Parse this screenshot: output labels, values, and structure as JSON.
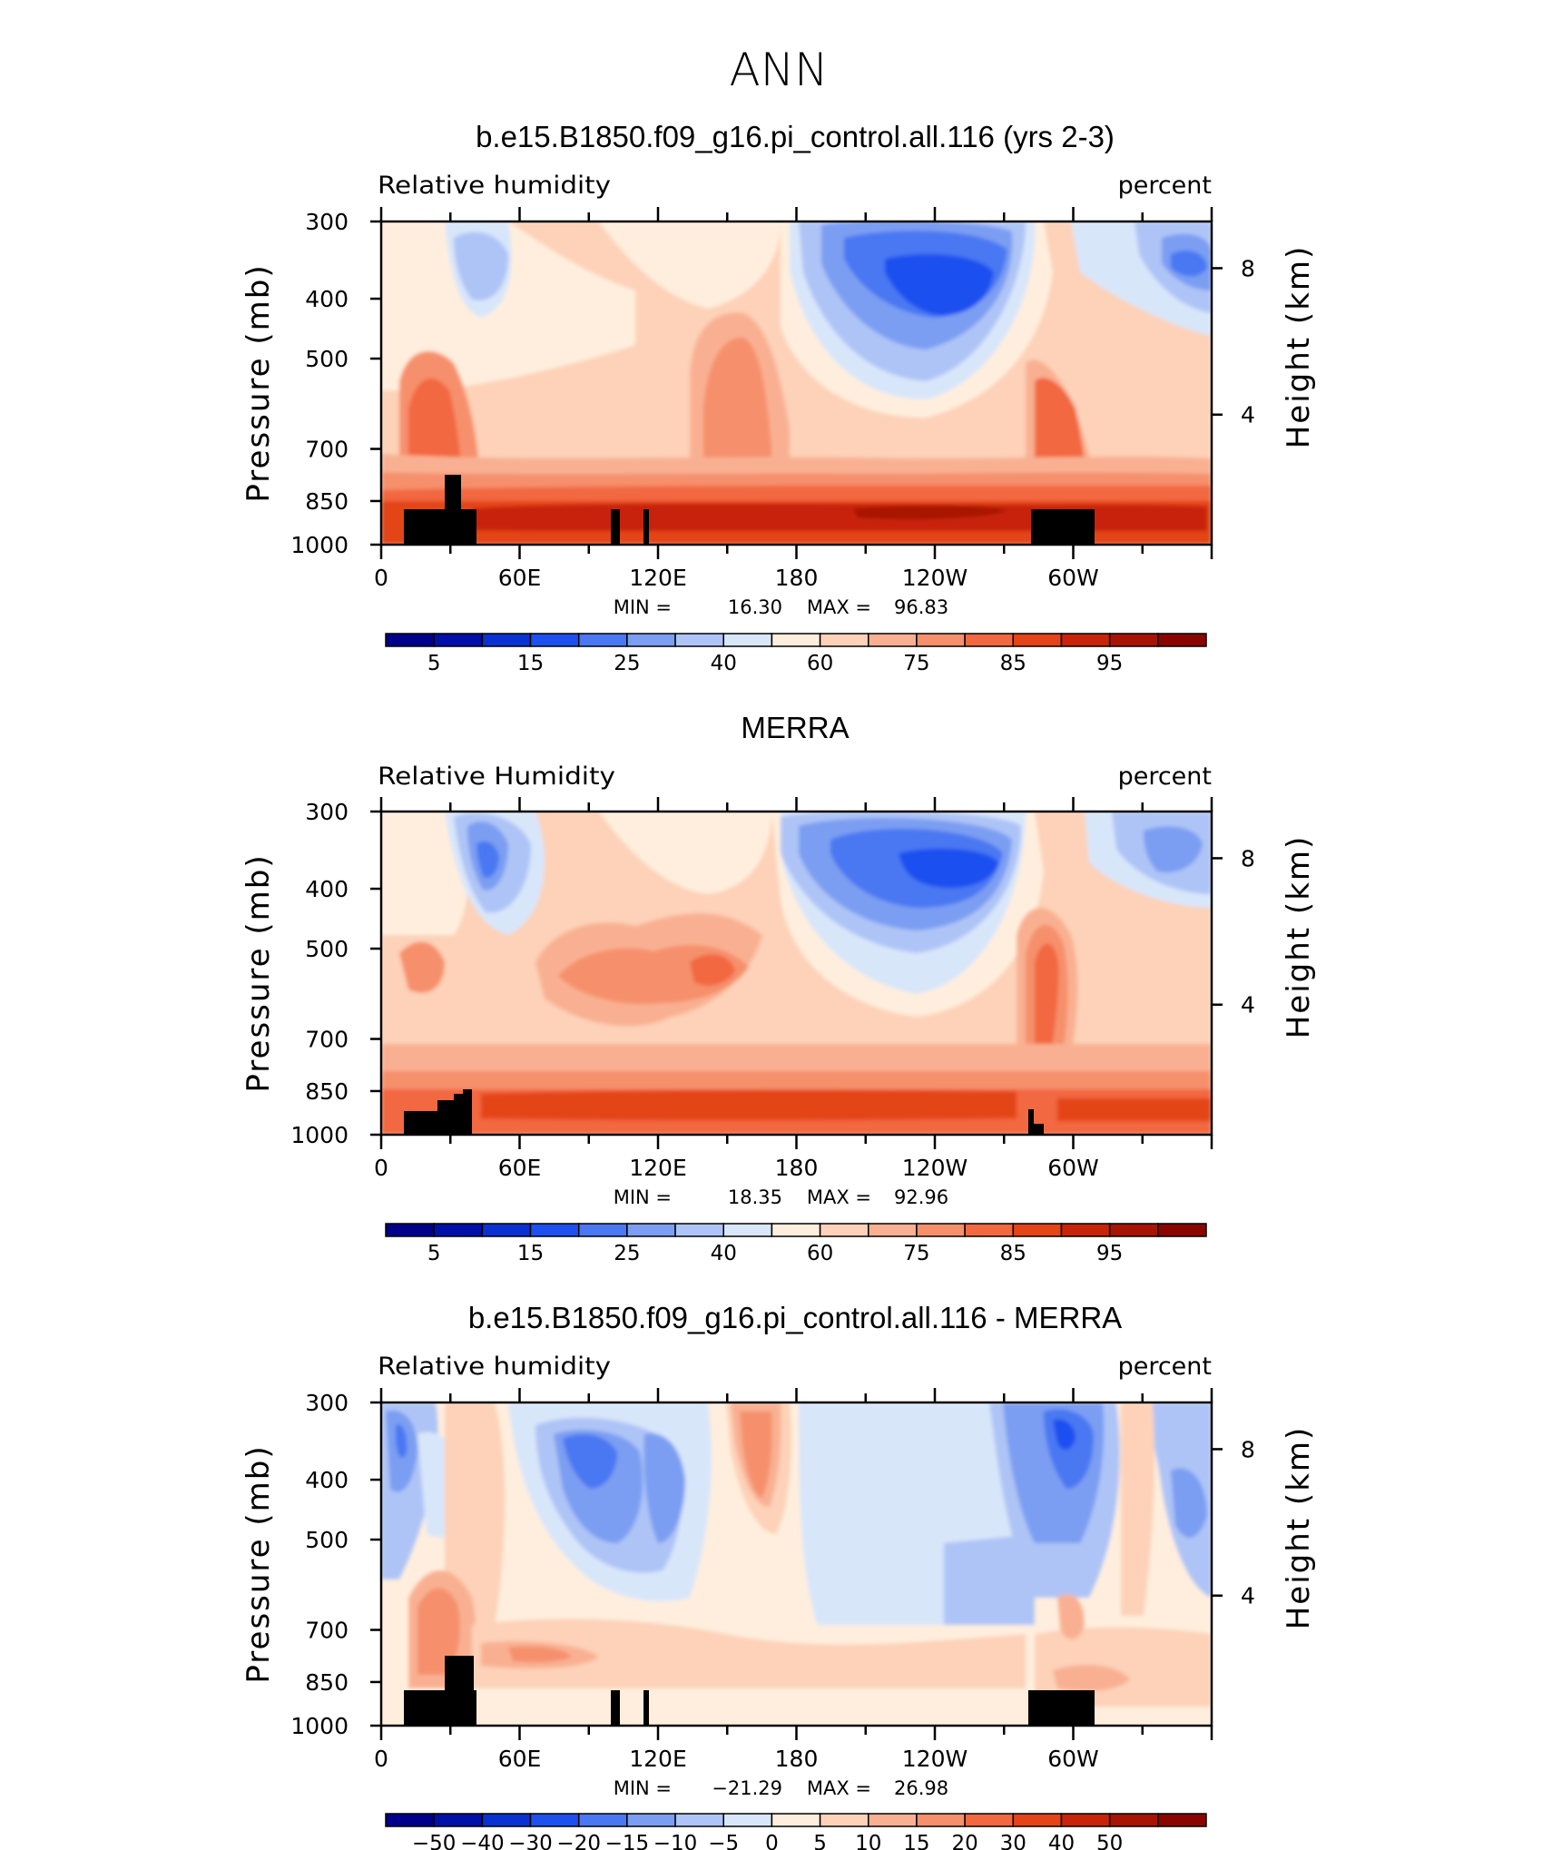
{
  "page_title": "ANN",
  "colors": {
    "relative_humidity_scale": [
      "#00008c",
      "#0010a8",
      "#0a32d2",
      "#1e50f0",
      "#4a78f2",
      "#7c9ef2",
      "#aec4f6",
      "#d8e6fa",
      "#ffeedd",
      "#fdd2b8",
      "#f9b092",
      "#f6906c",
      "#f26840",
      "#e44418",
      "#c8240a",
      "#a81404",
      "#8a0400"
    ],
    "difference_scale": [
      "#00008c",
      "#0010a8",
      "#0a32d2",
      "#1e50f0",
      "#4a78f2",
      "#7c9ef2",
      "#aec4f6",
      "#d8e6fa",
      "#ffeedd",
      "#fdd2b8",
      "#f9b092",
      "#f6906c",
      "#f26840",
      "#e44418",
      "#c8240a",
      "#a81404",
      "#8a0400"
    ],
    "topography": "#000000"
  },
  "chart_data": [
    {
      "type": "heatmap",
      "title": "b.e15.B1850.f09_g16.pi_control.all.116 (yrs 2-3)",
      "left_label": "Relative humidity",
      "right_label": "percent",
      "ylabel": "Pressure (mb)",
      "ylabel_right": "Height (km)",
      "y_ticks": [
        "300",
        "400",
        "500",
        "700",
        "850",
        "1000"
      ],
      "y_right_ticks": [
        "8",
        "4"
      ],
      "x_ticks": [
        "0",
        "60E",
        "120E",
        "180",
        "120W",
        "60W"
      ],
      "xlim": [
        0,
        360
      ],
      "ylim": [
        1000,
        300
      ],
      "min_label": "MIN =",
      "min": "16.30",
      "max_label": "MAX =",
      "max": "96.83",
      "colorbar_labels": [
        "5",
        "15",
        "25",
        "40",
        "60",
        "75",
        "85",
        "95"
      ]
    },
    {
      "type": "heatmap",
      "title": "MERRA",
      "left_label": "Relative Humidity",
      "right_label": "percent",
      "ylabel": "Pressure (mb)",
      "ylabel_right": "Height (km)",
      "y_ticks": [
        "300",
        "400",
        "500",
        "700",
        "850",
        "1000"
      ],
      "y_right_ticks": [
        "8",
        "4"
      ],
      "x_ticks": [
        "0",
        "60E",
        "120E",
        "180",
        "120W",
        "60W"
      ],
      "xlim": [
        0,
        360
      ],
      "ylim": [
        1000,
        300
      ],
      "min_label": "MIN =",
      "min": "18.35",
      "max_label": "MAX =",
      "max": "92.96",
      "colorbar_labels": [
        "5",
        "15",
        "25",
        "40",
        "60",
        "75",
        "85",
        "95"
      ]
    },
    {
      "type": "heatmap",
      "title": "b.e15.B1850.f09_g16.pi_control.all.116 - MERRA",
      "left_label": "Relative humidity",
      "right_label": "percent",
      "ylabel": "Pressure (mb)",
      "ylabel_right": "Height (km)",
      "y_ticks": [
        "300",
        "400",
        "500",
        "700",
        "850",
        "1000"
      ],
      "y_right_ticks": [
        "8",
        "4"
      ],
      "x_ticks": [
        "0",
        "60E",
        "120E",
        "180",
        "120W",
        "60W"
      ],
      "xlim": [
        0,
        360
      ],
      "ylim": [
        1000,
        300
      ],
      "min_label": "MIN =",
      "min": "−21.29",
      "max_label": "MAX =",
      "max": "26.98",
      "colorbar_labels": [
        "−50",
        "−40",
        "−30",
        "−20",
        "−15",
        "−10",
        "−5",
        "0",
        "5",
        "10",
        "15",
        "20",
        "30",
        "40",
        "50"
      ]
    }
  ]
}
